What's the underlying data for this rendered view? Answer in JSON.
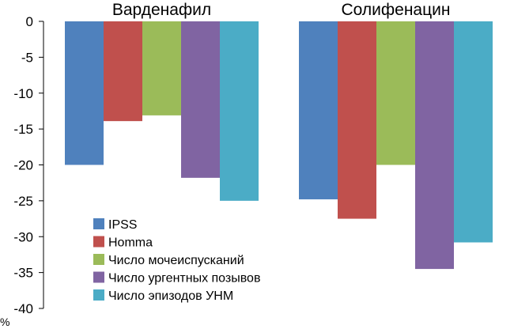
{
  "chart_data": {
    "type": "bar",
    "categories": [
      "Варденафил",
      "Солифенацин"
    ],
    "series": [
      {
        "name": "IPSS",
        "values": [
          -20,
          -24.8
        ],
        "color": "#4f81bd"
      },
      {
        "name": "Homma",
        "values": [
          -13.9,
          -27.5
        ],
        "color": "#c0504d"
      },
      {
        "name": "Число мочеиспусканий",
        "values": [
          -13.1,
          -20
        ],
        "color": "#9bbb59"
      },
      {
        "name": "Число ургентных позывов",
        "values": [
          -21.8,
          -34.5
        ],
        "color": "#8064a2"
      },
      {
        "name": "Число эпизодов УНМ",
        "values": [
          -25,
          -30.8
        ],
        "color": "#4bacc6"
      }
    ],
    "ylim": [
      -40,
      0
    ],
    "yticks": [
      0,
      -5,
      -10,
      -15,
      -20,
      -25,
      -30,
      -35,
      -40
    ],
    "ylabel": "%",
    "grid": false,
    "legend_position": "bottom-left",
    "orientation": "bars hang down from zero"
  }
}
